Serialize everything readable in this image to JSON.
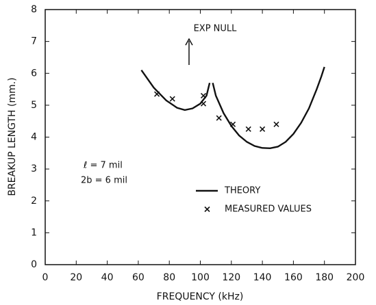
{
  "chart_data": {
    "type": "line",
    "xlabel": "FREQUENCY (kHz)",
    "ylabel": "BREAKUP LENGTH (mm.)",
    "annotations": [
      "EXP NULL",
      "ℓ = 7 mil",
      "2b = 6 mil"
    ],
    "xlim": [
      0,
      200
    ],
    "xticks": [
      0,
      20,
      40,
      60,
      80,
      100,
      120,
      140,
      160,
      180,
      200
    ],
    "ylim": [
      0,
      8
    ],
    "yticks": [
      0,
      1,
      2,
      3,
      4,
      5,
      6,
      7,
      8
    ],
    "series": [
      {
        "name": "THEORY",
        "type": "line",
        "color": "#111",
        "x": [
          62,
          70,
          78,
          85,
          90,
          95,
          100,
          104,
          106,
          107,
          108,
          110,
          115,
          120,
          125,
          130,
          135,
          140,
          145,
          150,
          155,
          160,
          165,
          170,
          175,
          178,
          180
        ],
        "values": [
          6.1,
          5.55,
          5.15,
          4.92,
          4.85,
          4.9,
          5.05,
          5.3,
          5.7,
          null,
          5.7,
          5.3,
          4.75,
          4.35,
          4.05,
          3.85,
          3.72,
          3.66,
          3.65,
          3.7,
          3.85,
          4.1,
          4.45,
          4.9,
          5.5,
          5.9,
          6.2
        ]
      },
      {
        "name": "MEASURED VALUES",
        "type": "scatter",
        "color": "#111",
        "x": [
          72,
          82,
          102,
          102,
          112,
          121,
          131,
          140,
          149
        ],
        "values": [
          5.35,
          5.2,
          5.3,
          5.05,
          4.6,
          4.4,
          4.25,
          4.25,
          4.4
        ]
      }
    ]
  }
}
